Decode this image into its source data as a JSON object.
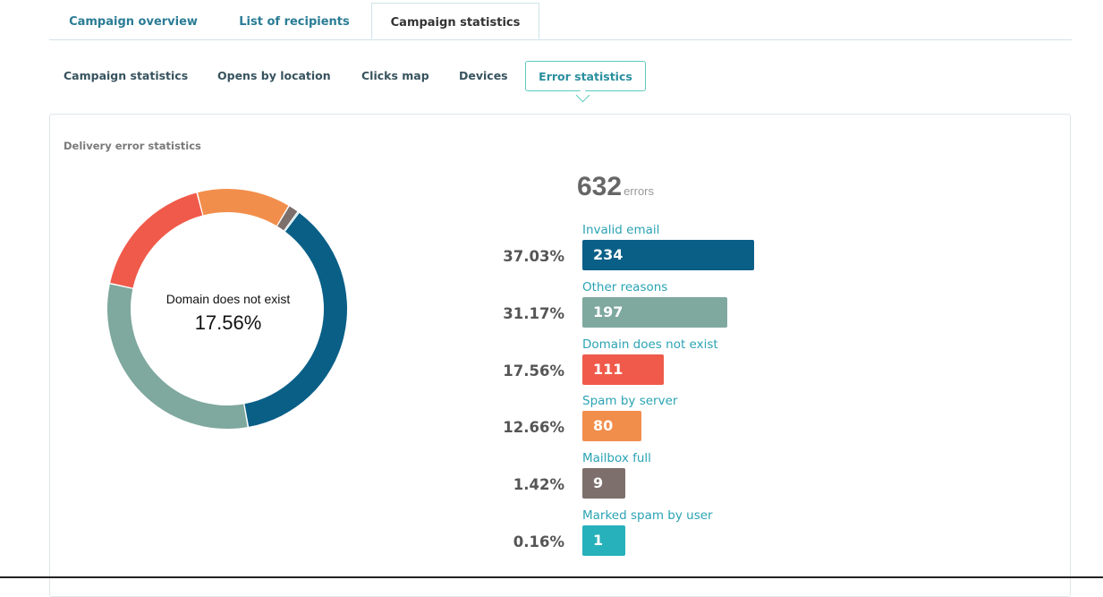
{
  "top_tabs": [
    {
      "label": "Campaign overview",
      "active": false
    },
    {
      "label": "List of recipients",
      "active": false
    },
    {
      "label": "Campaign statistics",
      "active": true
    }
  ],
  "sub_tabs": [
    {
      "label": "Campaign statistics",
      "active": false
    },
    {
      "label": "Opens by location",
      "active": false
    },
    {
      "label": "Clicks map",
      "active": false
    },
    {
      "label": "Devices",
      "active": false
    },
    {
      "label": "Error statistics",
      "active": true
    }
  ],
  "panel": {
    "title": "Delivery error statistics",
    "total": "632",
    "total_unit": "errors",
    "donut_center": {
      "label": "Domain does not exist",
      "percent": "17.56%"
    }
  },
  "chart_data": {
    "type": "bar",
    "categories": [
      "Invalid email",
      "Other reasons",
      "Domain does not exist",
      "Spam by server",
      "Mailbox full",
      "Marked spam by user"
    ],
    "values": [
      234,
      197,
      111,
      80,
      9,
      1
    ],
    "percents": [
      "37.03%",
      "31.17%",
      "17.56%",
      "12.66%",
      "1.42%",
      "0.16%"
    ],
    "value_labels": [
      "234",
      "197",
      "111",
      "80",
      "9",
      "1"
    ],
    "colors": [
      "#0a5f87",
      "#7fa89e",
      "#f05a4a",
      "#f28e4b",
      "#7d6f6b",
      "#27b1bb"
    ]
  }
}
